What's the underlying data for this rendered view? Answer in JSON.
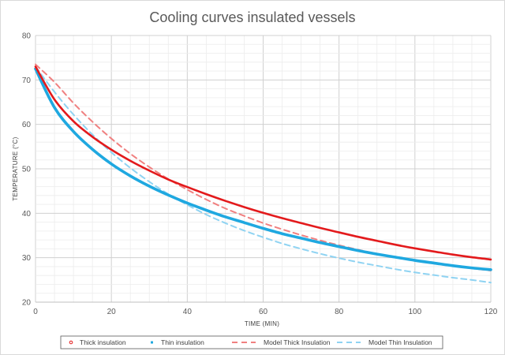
{
  "chart_data": {
    "type": "line",
    "title": "Cooling curves insulated vessels",
    "xlabel": "TIME (MIN)",
    "ylabel": "TEMPERATURE (°C)",
    "xlim": [
      0,
      120
    ],
    "ylim": [
      20,
      80
    ],
    "x_ticks": [
      0,
      20,
      40,
      60,
      80,
      100,
      120
    ],
    "y_ticks": [
      20,
      30,
      40,
      50,
      60,
      70,
      80
    ],
    "grid": true,
    "legend_position": "bottom",
    "series": [
      {
        "name": "Thick insulation",
        "style": "marker",
        "color": "#e31a1c",
        "x": [
          0,
          5,
          10,
          15,
          20,
          25,
          30,
          35,
          40,
          45,
          50,
          55,
          60,
          65,
          70,
          75,
          80,
          85,
          90,
          95,
          100,
          105,
          110,
          115,
          120
        ],
        "y": [
          73,
          65.6,
          60.7,
          57.2,
          54.3,
          51.8,
          49.6,
          47.6,
          45.9,
          44.3,
          42.8,
          41.4,
          40.1,
          38.9,
          37.8,
          36.7,
          35.7,
          34.7,
          33.8,
          32.9,
          32.1,
          31.4,
          30.7,
          30.1,
          29.6
        ]
      },
      {
        "name": "Thin insulation",
        "style": "marker",
        "color": "#1fa8e0",
        "x": [
          0,
          5,
          10,
          15,
          20,
          25,
          30,
          35,
          40,
          45,
          50,
          55,
          60,
          65,
          70,
          75,
          80,
          85,
          90,
          95,
          100,
          105,
          110,
          115,
          120
        ],
        "y": [
          72.5,
          63.8,
          58.4,
          54.4,
          51.1,
          48.4,
          46.1,
          44.1,
          42.3,
          40.7,
          39.2,
          37.9,
          36.6,
          35.4,
          34.4,
          33.4,
          32.5,
          31.6,
          30.8,
          30.1,
          29.4,
          28.8,
          28.2,
          27.7,
          27.3
        ]
      },
      {
        "name": "Model Thick Insulation",
        "style": "dashed",
        "color": "#f08080",
        "x": [
          0,
          5,
          10,
          15,
          20,
          25,
          30,
          35,
          40,
          45,
          50,
          55,
          60,
          65,
          70,
          75,
          80,
          85,
          90,
          95,
          100,
          105,
          110,
          115,
          120
        ],
        "y": [
          73.5,
          69.5,
          64.8,
          60.6,
          56.8,
          53.4,
          50.4,
          47.7,
          45.3,
          43.1,
          41.1,
          39.4,
          37.8,
          36.4,
          35.1,
          33.9,
          32.8,
          31.8,
          30.9,
          30.1,
          29.4,
          28.7,
          28.1,
          27.6,
          27.1
        ]
      },
      {
        "name": "Model Thin Insulation",
        "style": "dashed",
        "color": "#8fd3f2",
        "x": [
          0,
          5,
          10,
          15,
          20,
          25,
          30,
          35,
          40,
          45,
          50,
          55,
          60,
          65,
          70,
          75,
          80,
          85,
          90,
          95,
          100,
          105,
          110,
          115,
          120
        ],
        "y": [
          73,
          67.3,
          62.2,
          57.7,
          53.7,
          50.2,
          47.1,
          44.3,
          41.9,
          39.7,
          37.8,
          36.1,
          34.6,
          33.2,
          32,
          30.9,
          29.9,
          29,
          28.2,
          27.4,
          26.7,
          26.1,
          25.5,
          25,
          24.4
        ]
      }
    ]
  }
}
